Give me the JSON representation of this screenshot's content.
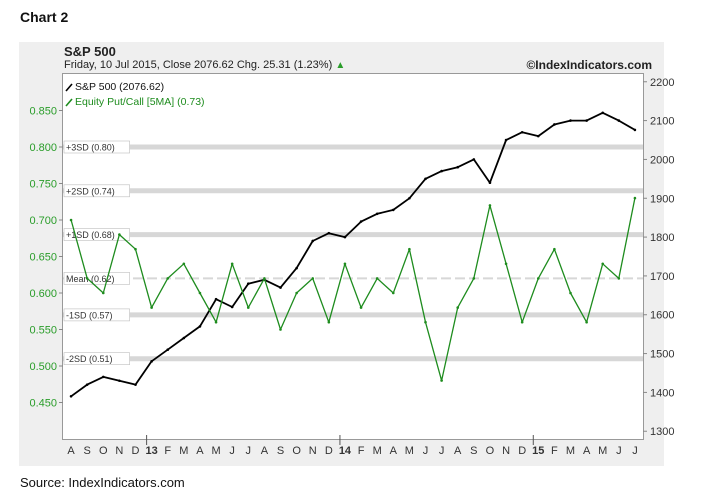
{
  "page": {
    "title": "Chart 2",
    "source": "Source: IndexIndicators.com"
  },
  "header": {
    "title": "S&P 500",
    "subtitle": "Friday, 10 Jul 2015, Close 2076.62 Chg. 25.31 (1.23%)",
    "up_arrow": "▲",
    "brand": "©IndexIndicators.com"
  },
  "colors": {
    "spx": "#000000",
    "putcall": "#1e8c1e",
    "band": "#d7d7d7",
    "axis_green": "#2a9d2a"
  },
  "chart_data": {
    "type": "line",
    "x": [
      "A",
      "S",
      "O",
      "N",
      "D",
      "13",
      "F",
      "M",
      "A",
      "M",
      "J",
      "J",
      "A",
      "S",
      "O",
      "N",
      "D",
      "14",
      "F",
      "M",
      "A",
      "M",
      "J",
      "J",
      "A",
      "S",
      "O",
      "N",
      "D",
      "15",
      "F",
      "M",
      "A",
      "M",
      "J",
      "J"
    ],
    "series": [
      {
        "name": "S&P 500 (2076.62)",
        "axis": "right",
        "values": [
          1390,
          1420,
          1440,
          1430,
          1420,
          1480,
          1510,
          1540,
          1570,
          1640,
          1620,
          1680,
          1690,
          1670,
          1720,
          1790,
          1810,
          1800,
          1840,
          1860,
          1870,
          1900,
          1950,
          1970,
          1980,
          2000,
          1940,
          2050,
          2070,
          2060,
          2090,
          2100,
          2100,
          2120,
          2100,
          2076
        ]
      },
      {
        "name": "Equity Put/Call [5MA] (0.73)",
        "axis": "left",
        "values": [
          0.7,
          0.62,
          0.6,
          0.68,
          0.66,
          0.58,
          0.62,
          0.64,
          0.6,
          0.56,
          0.64,
          0.58,
          0.62,
          0.55,
          0.6,
          0.62,
          0.56,
          0.64,
          0.58,
          0.62,
          0.6,
          0.66,
          0.56,
          0.48,
          0.58,
          0.62,
          0.72,
          0.64,
          0.56,
          0.62,
          0.66,
          0.6,
          0.56,
          0.64,
          0.62,
          0.73
        ]
      }
    ],
    "y_left": {
      "ylim": [
        0.4,
        0.9
      ],
      "ticks": [
        "0.450",
        "0.500",
        "0.550",
        "0.600",
        "0.650",
        "0.700",
        "0.750",
        "0.800",
        "0.850"
      ]
    },
    "y_right": {
      "ylim": [
        1280,
        2220
      ],
      "ticks": [
        "1300",
        "1400",
        "1500",
        "1600",
        "1700",
        "1800",
        "1900",
        "2000",
        "2100",
        "2200"
      ]
    },
    "bands": [
      {
        "label": "+3SD (0.80)",
        "value": 0.8
      },
      {
        "label": "+2SD (0.74)",
        "value": 0.74
      },
      {
        "label": "+1SD (0.68)",
        "value": 0.68
      },
      {
        "label": "Mean (0.62)",
        "value": 0.62,
        "dashed": true
      },
      {
        "label": "-1SD (0.57)",
        "value": 0.57
      },
      {
        "label": "-2SD (0.51)",
        "value": 0.51
      }
    ],
    "bold_ticks": [
      "13",
      "14",
      "15"
    ],
    "legend": "top-left",
    "grid": true
  }
}
